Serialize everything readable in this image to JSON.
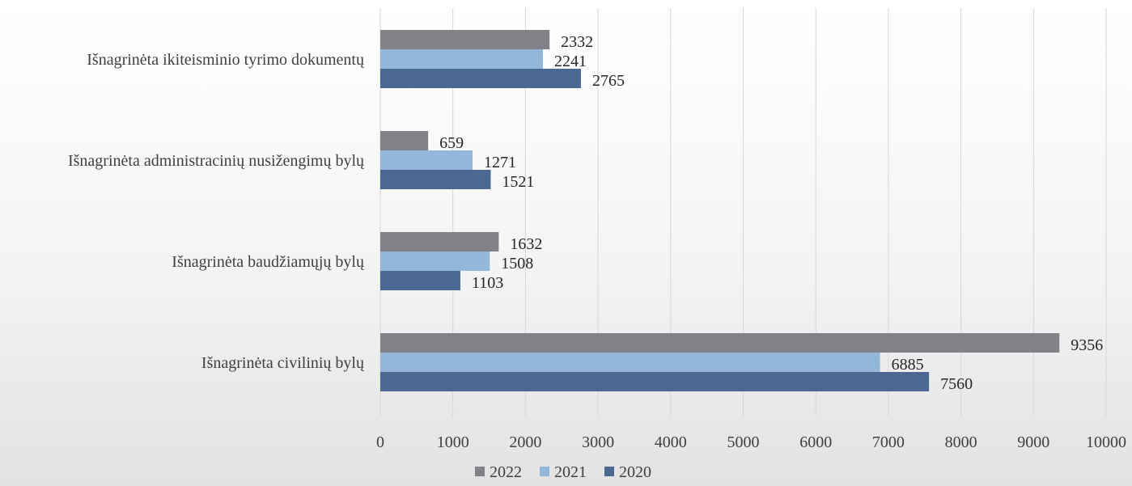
{
  "chart_data": {
    "type": "bar",
    "orientation": "horizontal",
    "categories": [
      "Išnagrinėta ikiteisminio tyrimo dokumentų",
      "Išnagrinėta administracinių nusižengimų bylų",
      "Išnagrinėta baudžiamųjų bylų",
      "Išnagrinėta civilinių bylų"
    ],
    "series": [
      {
        "name": "2022",
        "color": "#828187",
        "values": [
          2332,
          659,
          1632,
          9356
        ]
      },
      {
        "name": "2021",
        "color": "#93b7d9",
        "values": [
          2241,
          1271,
          1508,
          6885
        ]
      },
      {
        "name": "2020",
        "color": "#4a6891",
        "values": [
          2765,
          1521,
          1103,
          7560
        ]
      }
    ],
    "xlim": [
      0,
      10000
    ],
    "x_ticks": [
      0,
      1000,
      2000,
      3000,
      4000,
      5000,
      6000,
      7000,
      8000,
      9000,
      10000
    ],
    "grid": "vertical",
    "legend_position": "bottom",
    "data_labels": true
  }
}
